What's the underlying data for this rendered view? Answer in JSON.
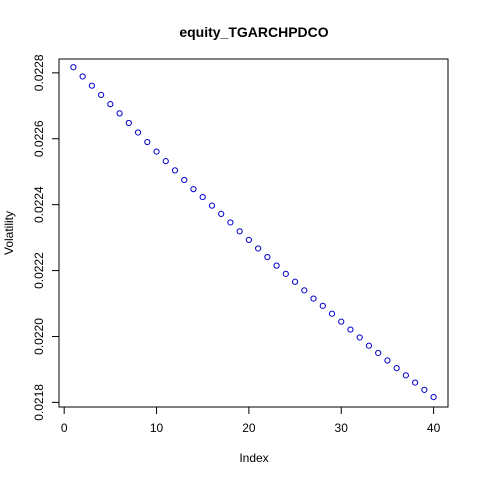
{
  "chart_data": {
    "type": "scatter",
    "title": "equity_TGARCHPDCO",
    "xlabel": "Index",
    "ylabel": "Volatility",
    "xlim": [
      -0.56,
      41.56
    ],
    "ylim": [
      0.021786,
      0.022842
    ],
    "x_ticks": [
      0,
      10,
      20,
      30,
      40
    ],
    "x_tick_labels": [
      "0",
      "10",
      "20",
      "30",
      "40"
    ],
    "y_ticks": [
      0.0218,
      0.022,
      0.0222,
      0.0224,
      0.0226,
      0.0228
    ],
    "y_tick_labels": [
      "0.0218",
      "0.0220",
      "0.0222",
      "0.0224",
      "0.0226",
      "0.0228"
    ],
    "grid": false,
    "marker": "open-circle",
    "point_color": "#0000cc",
    "x": [
      1,
      2,
      3,
      4,
      5,
      6,
      7,
      8,
      9,
      10,
      11,
      12,
      13,
      14,
      15,
      16,
      17,
      18,
      19,
      20,
      21,
      22,
      23,
      24,
      25,
      26,
      27,
      28,
      29,
      30,
      31,
      32,
      33,
      34,
      35,
      36,
      37,
      38,
      39,
      40
    ],
    "y": [
      0.022817,
      0.022789,
      0.022761,
      0.022733,
      0.022705,
      0.022677,
      0.022648,
      0.022619,
      0.02259,
      0.022561,
      0.022532,
      0.022504,
      0.022475,
      0.022447,
      0.022423,
      0.022397,
      0.022372,
      0.022346,
      0.022319,
      0.022293,
      0.022267,
      0.022241,
      0.022215,
      0.02219,
      0.022166,
      0.02214,
      0.022115,
      0.022093,
      0.022069,
      0.022045,
      0.022021,
      0.021997,
      0.021972,
      0.02195,
      0.021927,
      0.021904,
      0.021882,
      0.02186,
      0.021838,
      0.021816
    ]
  }
}
